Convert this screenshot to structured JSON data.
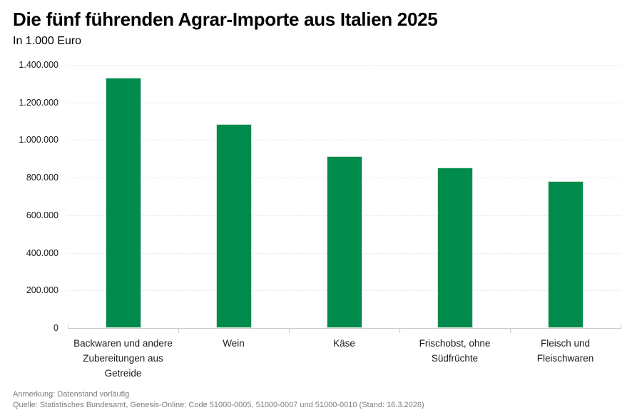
{
  "header": {
    "title": "Die fünf führenden Agrar-Importe aus Italien 2025",
    "subtitle": "In 1.000 Euro"
  },
  "footer": {
    "note": "Anmerkung: Datenstand vorläufig",
    "source": "Quelle: Statistisches Bundesamt, Genesis-Online: Code 51000-0005, 51000-0007 und 51000-0010 (Stand: 16.3.2026)"
  },
  "colors": {
    "bar": "#008b4d",
    "bar_border": "#cfe4d8",
    "gridline": "#e4e4e4",
    "axis": "#c9c9c9",
    "text": "#000000",
    "muted_text": "#7d7d7d"
  },
  "chart_data": {
    "type": "bar",
    "title": "Die fünf führenden Agrar-Importe aus Italien 2025",
    "subtitle": "In 1.000 Euro",
    "xlabel": "",
    "ylabel": "In 1.000 Euro",
    "categories": [
      "Backwaren und andere Zubereitungen aus Getreide",
      "Wein",
      "Käse",
      "Frischobst, ohne Südfrüchte",
      "Fleisch und Fleischwaren"
    ],
    "category_lines": [
      [
        "Backwaren und andere",
        "Zubereitungen aus",
        "Getreide"
      ],
      [
        "Wein"
      ],
      [
        "Käse"
      ],
      [
        "Frischobst, ohne",
        "Südfrüchte"
      ],
      [
        "Fleisch und",
        "Fleischwaren"
      ]
    ],
    "values": [
      1330000,
      1085000,
      915000,
      855000,
      780000
    ],
    "ylim": [
      0,
      1400000
    ],
    "ytick_step": 200000,
    "ytick_labels": [
      "0",
      "200.000",
      "400.000",
      "600.000",
      "800.000",
      "1.000.000",
      "1.200.000",
      "1.400.000"
    ],
    "grid": true,
    "gridline_style": "dotted",
    "legend": false,
    "bar_color": "#008b4d"
  }
}
